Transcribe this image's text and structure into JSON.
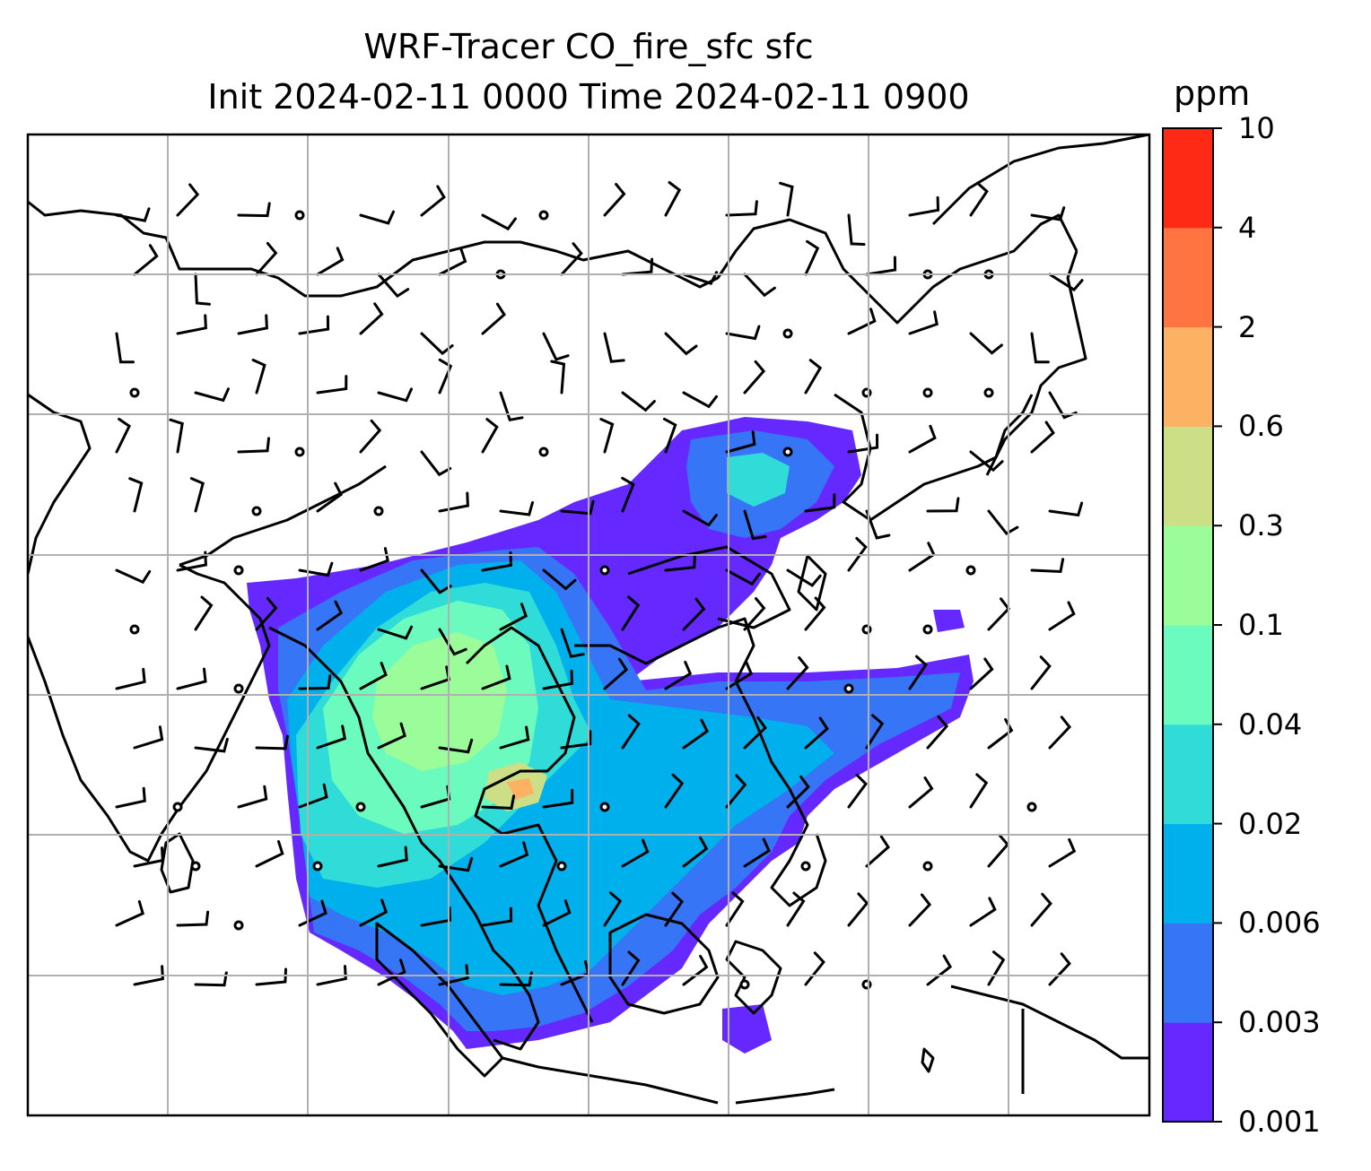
{
  "title": {
    "line1": "WRF-Tracer CO_fire_sfc sfc",
    "line2": "Init 2024-02-11 0000 Time 2024-02-11 0900"
  },
  "colorbar": {
    "unit": "ppm",
    "ticks": [
      "0.001",
      "0.003",
      "0.006",
      "0.02",
      "0.04",
      "0.1",
      "0.3",
      "0.6",
      "2",
      "4",
      "10"
    ],
    "colors": [
      "#6529ff",
      "#3675f5",
      "#00b0ec",
      "#2fdcd7",
      "#6cfbbe",
      "#9bfc9a",
      "#ccdf87",
      "#fdb162",
      "#ff7441",
      "#ff2a16"
    ]
  },
  "map": {
    "background": "#ffffff",
    "gridline_color": "#b0b0b0",
    "coastline_color": "#000000"
  }
}
